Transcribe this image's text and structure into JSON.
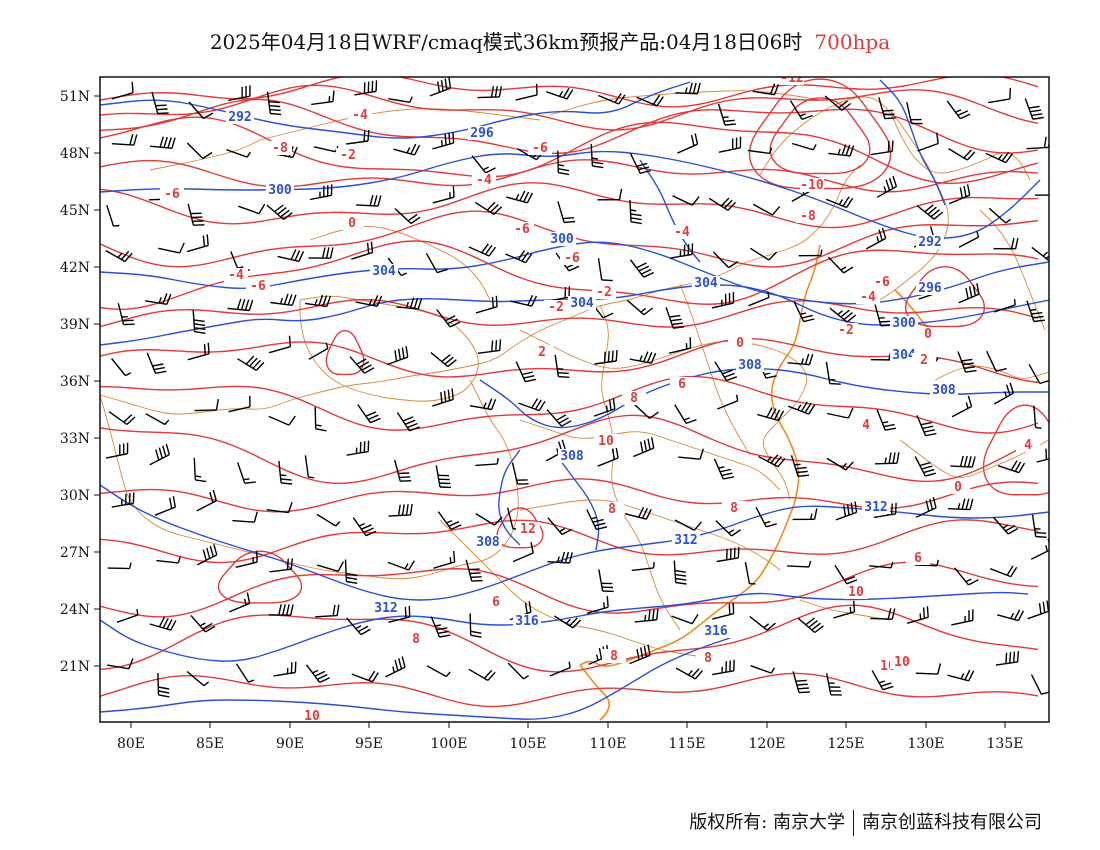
{
  "title": {
    "main": "2025年04月18日WRF/cmaq模式36km预报产品:04月18日06时",
    "level": "700hpa"
  },
  "colors": {
    "temperature_contour": "#e23a3a",
    "height_contour": "#2a4fd6",
    "boundary": "#d68a3a",
    "coastline": "#f08a1a",
    "wind_barb": "#000000",
    "level_text": "#e23a3a"
  },
  "axes": {
    "lat_labels": [
      "51N",
      "48N",
      "45N",
      "42N",
      "39N",
      "36N",
      "33N",
      "30N",
      "27N",
      "24N",
      "21N"
    ],
    "lon_labels": [
      "80E",
      "85E",
      "90E",
      "95E",
      "100E",
      "105E",
      "110E",
      "115E",
      "120E",
      "125E",
      "130E",
      "135E"
    ]
  },
  "contour_labels": {
    "height": [
      "292",
      "296",
      "300",
      "300",
      "304",
      "304",
      "304",
      "308",
      "308",
      "308",
      "312",
      "312",
      "312",
      "316",
      "316",
      "292",
      "296",
      "300",
      "304",
      "308"
    ],
    "temperature": [
      "-4",
      "-8",
      "-2",
      "-6",
      "-6",
      "-4",
      "-6",
      "0",
      "-4",
      "-6",
      "-6",
      "-4",
      "-2",
      "-12",
      "-10",
      "-8",
      "-6",
      "-4",
      "-2",
      "0",
      "2",
      "0",
      "2",
      "4",
      "6",
      "8",
      "10",
      "6",
      "8",
      "4",
      "0",
      "-2",
      "6",
      "8",
      "10",
      "12",
      "8",
      "10",
      "8",
      "10",
      "10",
      "8"
    ]
  },
  "footer": {
    "copyright": "版权所有: 南京大学",
    "company": "南京创蓝科技有限公司"
  }
}
